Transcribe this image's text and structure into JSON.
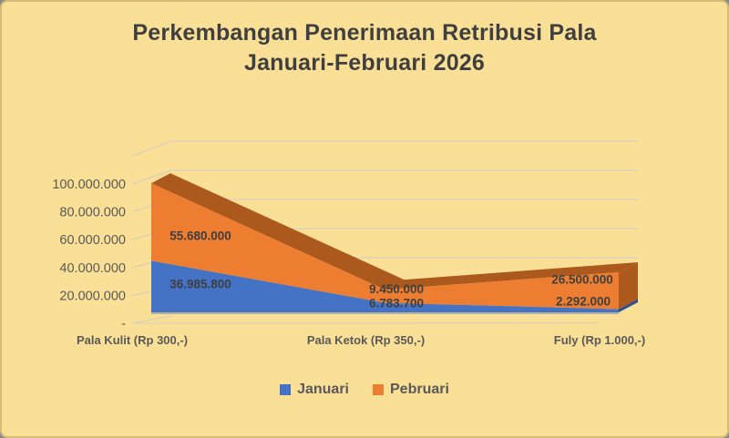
{
  "window": {
    "background": "#FAE096"
  },
  "chart_data": {
    "type": "area",
    "variant": "3d-stacked-area",
    "title_line1": "Perkembangan Penerimaan Retribusi Pala",
    "title_line2": "Januari-Februari 2026",
    "categories": [
      "Pala Kulit  (Rp 300,-)",
      "Pala Ketok (Rp 350,-)",
      "Fuly (Rp 1.000,-)"
    ],
    "series": [
      {
        "name": "Januari",
        "color": "#4472C4",
        "dark_color": "#2D4D8E",
        "values": [
          36985800,
          6783700,
          2292000
        ],
        "labels": [
          "36.985.800",
          "6.783.700",
          "2.292.000"
        ]
      },
      {
        "name": "Pebruari",
        "color": "#ED7D31",
        "dark_color": "#AC591E",
        "values": [
          55680000,
          9450000,
          26500000
        ],
        "labels": [
          "55.680.000",
          "9.450.000",
          "26.500.000"
        ]
      }
    ],
    "stacked": true,
    "y_axis": {
      "min": 0,
      "max": 120000000,
      "step": 20000000,
      "tick_labels": [
        "-",
        "20.000.000",
        "40.000.000",
        "60.000.000",
        "80.000.000",
        "100.000.000"
      ]
    },
    "grid": true,
    "legend_position": "bottom",
    "text_colors": {
      "title": "#3F3F3F",
      "axis": "#595959",
      "data_label": "#3F3F3F",
      "gridline": "#D6CFBC"
    }
  }
}
